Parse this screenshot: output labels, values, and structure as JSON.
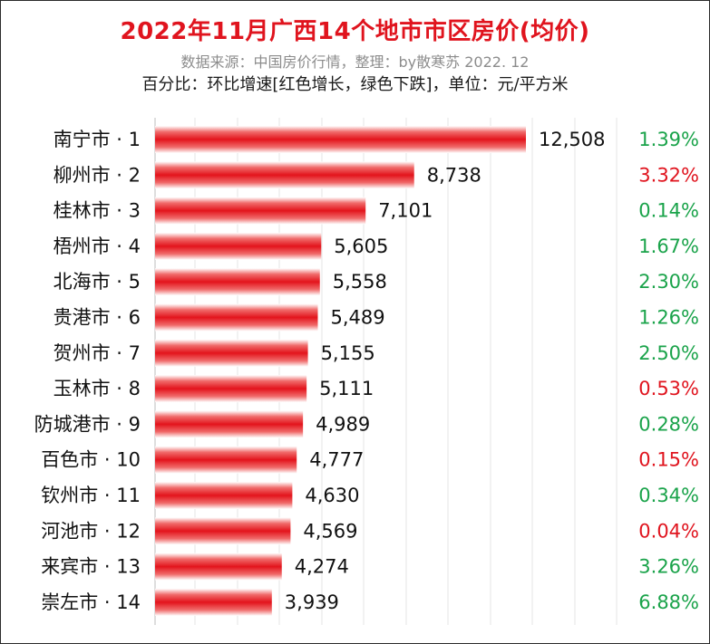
{
  "header": {
    "title": "2022年11月广西14个地市市区房价(均价)",
    "subtitle": "数据来源：中国房价行情，整理：by散寒苏 2022. 12",
    "note": "百分比：环比增速[红色增长，绿色下跌]，单位：元/平方米"
  },
  "colors": {
    "bar": "#e3141c",
    "increase": "#e0141e",
    "decrease": "#1aa34a",
    "grid": "#e6e6e6",
    "title": "#e0141e"
  },
  "chart_data": {
    "type": "bar",
    "orientation": "horizontal",
    "title": "2022年11月广西14个地市市区房价(均价)",
    "unit": "元/平方米",
    "categories": [
      "南宁市 · 1",
      "柳州市 · 2",
      "桂林市 · 3",
      "梧州市 · 4",
      "北海市 · 5",
      "贵港市 · 6",
      "贺州市 · 7",
      "玉林市 · 8",
      "防城港市 · 9",
      "百色市 · 10",
      "钦州市 · 11",
      "河池市 · 12",
      "来宾市 · 13",
      "崇左市 · 14"
    ],
    "values": [
      12508,
      8738,
      7101,
      5605,
      5558,
      5489,
      5155,
      5111,
      4989,
      4777,
      4630,
      4569,
      4274,
      3939
    ],
    "value_labels": [
      "12,508",
      "8,738",
      "7,101",
      "5,605",
      "5,558",
      "5,489",
      "5,155",
      "5,111",
      "4,989",
      "4,777",
      "4,630",
      "4,569",
      "4,274",
      "3,939"
    ],
    "change_labels": [
      "1.39%",
      "3.32%",
      "0.14%",
      "1.67%",
      "2.30%",
      "1.26%",
      "2.50%",
      "0.53%",
      "0.28%",
      "0.15%",
      "0.34%",
      "0.04%",
      "3.26%",
      "6.88%"
    ],
    "change_direction": [
      "down",
      "up",
      "down",
      "down",
      "down",
      "down",
      "down",
      "up",
      "down",
      "up",
      "down",
      "up",
      "down",
      "down"
    ],
    "xlim": [
      0,
      12508
    ],
    "grid": true
  }
}
